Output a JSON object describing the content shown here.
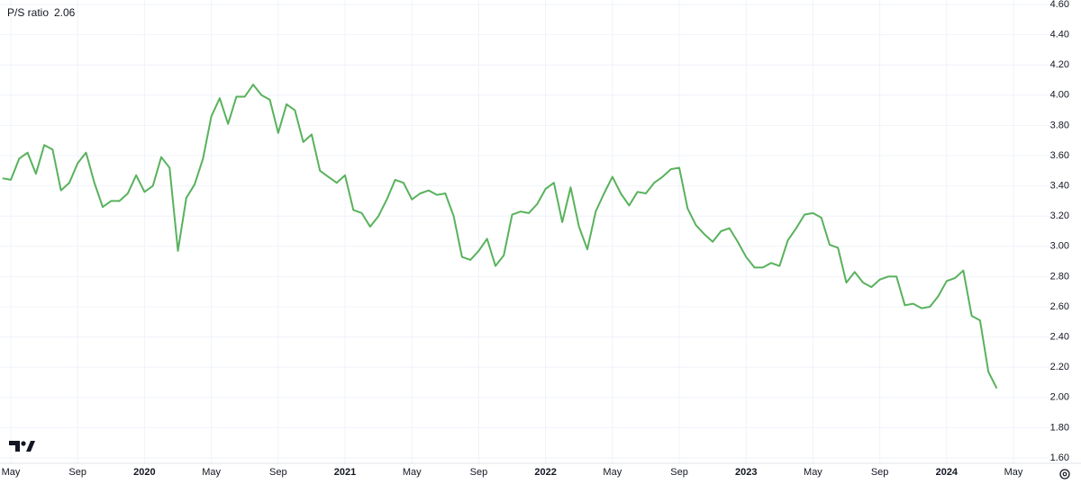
{
  "chart_data": {
    "type": "line",
    "categories": [
      null,
      "May",
      null,
      null,
      null,
      null,
      null,
      null,
      null,
      "Sep",
      null,
      null,
      null,
      null,
      null,
      null,
      null,
      "2020",
      null,
      null,
      null,
      null,
      null,
      null,
      null,
      "May",
      null,
      null,
      null,
      null,
      null,
      null,
      null,
      "Sep",
      null,
      null,
      null,
      null,
      null,
      null,
      null,
      "2021",
      null,
      null,
      null,
      null,
      null,
      null,
      null,
      "May",
      null,
      null,
      null,
      null,
      null,
      null,
      null,
      "Sep",
      null,
      null,
      null,
      null,
      null,
      null,
      null,
      "2022",
      null,
      null,
      null,
      null,
      null,
      null,
      null,
      "May",
      null,
      null,
      null,
      null,
      null,
      null,
      null,
      "Sep",
      null,
      null,
      null,
      null,
      null,
      null,
      null,
      "2023",
      null,
      null,
      null,
      null,
      null,
      null,
      null,
      "May",
      null,
      null,
      null,
      null,
      null,
      null,
      null,
      "Sep",
      null,
      null,
      null,
      null,
      null,
      null,
      null,
      "2024",
      null,
      null,
      null,
      null,
      null,
      null,
      null,
      "May"
    ],
    "series": [
      {
        "name": "P/S ratio",
        "color": "#58b25c",
        "values": [
          3.45,
          3.44,
          3.58,
          3.62,
          3.48,
          3.67,
          3.64,
          3.37,
          3.42,
          3.55,
          3.62,
          3.42,
          3.26,
          3.3,
          3.3,
          3.35,
          3.47,
          3.36,
          3.4,
          3.59,
          3.52,
          2.97,
          3.32,
          3.41,
          3.58,
          3.86,
          3.98,
          3.81,
          3.99,
          3.99,
          4.07,
          4.0,
          3.97,
          3.75,
          3.94,
          3.9,
          3.69,
          3.74,
          3.5,
          3.46,
          3.42,
          3.47,
          3.24,
          3.22,
          3.13,
          3.2,
          3.31,
          3.44,
          3.42,
          3.31,
          3.35,
          3.37,
          3.34,
          3.35,
          3.2,
          2.93,
          2.91,
          2.97,
          3.05,
          2.87,
          2.94,
          3.21,
          3.23,
          3.22,
          3.28,
          3.38,
          3.42,
          3.16,
          3.39,
          3.13,
          2.98,
          3.23,
          3.35,
          3.46,
          3.35,
          3.27,
          3.36,
          3.35,
          3.42,
          3.46,
          3.51,
          3.52,
          3.25,
          3.14,
          3.08,
          3.03,
          3.1,
          3.12,
          3.03,
          2.93,
          2.86,
          2.86,
          2.89,
          2.87,
          3.04,
          3.12,
          3.21,
          3.22,
          3.19,
          3.01,
          2.99,
          2.76,
          2.83,
          2.76,
          2.73,
          2.78,
          2.8,
          2.8,
          2.61,
          2.62,
          2.59,
          2.6,
          2.67,
          2.77,
          2.79,
          2.84,
          2.54,
          2.51,
          2.17,
          2.06,
          null,
          null
        ]
      }
    ],
    "ylim": [
      1.6,
      4.6
    ],
    "yticks": [
      {
        "value": 1.6,
        "label": "1.60"
      },
      {
        "value": 1.8,
        "label": "1.80"
      },
      {
        "value": 2.0,
        "label": "2.00"
      },
      {
        "value": 2.2,
        "label": "2.20"
      },
      {
        "value": 2.4,
        "label": "2.40"
      },
      {
        "value": 2.6,
        "label": "2.60"
      },
      {
        "value": 2.8,
        "label": "2.80"
      },
      {
        "value": 3.0,
        "label": "3.00"
      },
      {
        "value": 3.2,
        "label": "3.20"
      },
      {
        "value": 3.4,
        "label": "3.40"
      },
      {
        "value": 3.6,
        "label": "3.60"
      },
      {
        "value": 3.8,
        "label": "3.80"
      },
      {
        "value": 4.0,
        "label": "4.00"
      },
      {
        "value": 4.2,
        "label": "4.20"
      },
      {
        "value": 4.4,
        "label": "4.40"
      },
      {
        "value": 4.6,
        "label": "4.60"
      }
    ],
    "grid": true
  }
}
